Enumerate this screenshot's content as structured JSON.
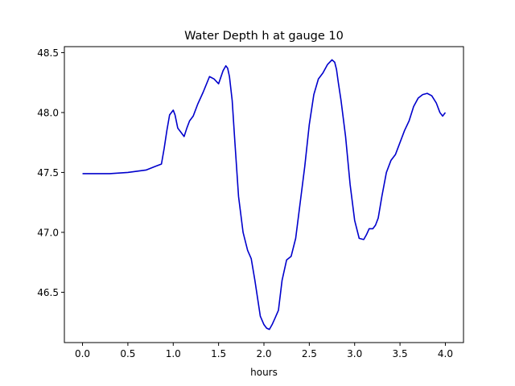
{
  "chart_data": {
    "type": "line",
    "title": "Water Depth h at gauge 10",
    "xlabel": "hours",
    "ylabel": "",
    "xlim": [
      -0.2,
      4.2
    ],
    "ylim": [
      46.08,
      48.55
    ],
    "xticks": [
      0.0,
      0.5,
      1.0,
      1.5,
      2.0,
      2.5,
      3.0,
      3.5,
      4.0
    ],
    "xtick_labels": [
      "0.0",
      "0.5",
      "1.0",
      "1.5",
      "2.0",
      "2.5",
      "3.0",
      "3.5",
      "4.0"
    ],
    "yticks": [
      46.5,
      47.0,
      47.5,
      48.0,
      48.5
    ],
    "ytick_labels": [
      "46.5",
      "47.0",
      "47.5",
      "48.0",
      "48.5"
    ],
    "grid": false,
    "series": [
      {
        "color": "#0000cc",
        "x": [
          0.0,
          0.3,
          0.5,
          0.7,
          0.8,
          0.87,
          0.9,
          0.93,
          0.96,
          1.0,
          1.02,
          1.05,
          1.08,
          1.12,
          1.15,
          1.18,
          1.22,
          1.27,
          1.33,
          1.4,
          1.45,
          1.5,
          1.55,
          1.58,
          1.6,
          1.62,
          1.65,
          1.68,
          1.72,
          1.77,
          1.82,
          1.86,
          1.9,
          1.93,
          1.96,
          2.0,
          2.03,
          2.06,
          2.09,
          2.12,
          2.16,
          2.2,
          2.25,
          2.3,
          2.35,
          2.4,
          2.45,
          2.5,
          2.55,
          2.6,
          2.65,
          2.7,
          2.75,
          2.78,
          2.8,
          2.82,
          2.85,
          2.9,
          2.95,
          3.0,
          3.05,
          3.1,
          3.13,
          3.16,
          3.2,
          3.23,
          3.26,
          3.3,
          3.35,
          3.4,
          3.45,
          3.5,
          3.55,
          3.6,
          3.65,
          3.7,
          3.75,
          3.8,
          3.85,
          3.9,
          3.94,
          3.97,
          4.0
        ],
        "y": [
          47.49,
          47.49,
          47.5,
          47.52,
          47.55,
          47.57,
          47.7,
          47.85,
          47.98,
          48.02,
          47.98,
          47.87,
          47.84,
          47.8,
          47.87,
          47.93,
          47.97,
          48.07,
          48.17,
          48.3,
          48.28,
          48.24,
          48.35,
          48.39,
          48.37,
          48.3,
          48.1,
          47.75,
          47.3,
          47.0,
          46.85,
          46.78,
          46.6,
          46.45,
          46.3,
          46.23,
          46.2,
          46.19,
          46.23,
          46.28,
          46.35,
          46.6,
          46.77,
          46.8,
          46.95,
          47.25,
          47.55,
          47.9,
          48.15,
          48.28,
          48.33,
          48.4,
          48.44,
          48.42,
          48.36,
          48.25,
          48.1,
          47.8,
          47.4,
          47.1,
          46.95,
          46.94,
          46.98,
          47.03,
          47.03,
          47.06,
          47.12,
          47.3,
          47.5,
          47.6,
          47.65,
          47.75,
          47.85,
          47.93,
          48.05,
          48.12,
          48.15,
          48.16,
          48.14,
          48.08,
          48.0,
          47.97,
          48.0
        ]
      }
    ]
  }
}
